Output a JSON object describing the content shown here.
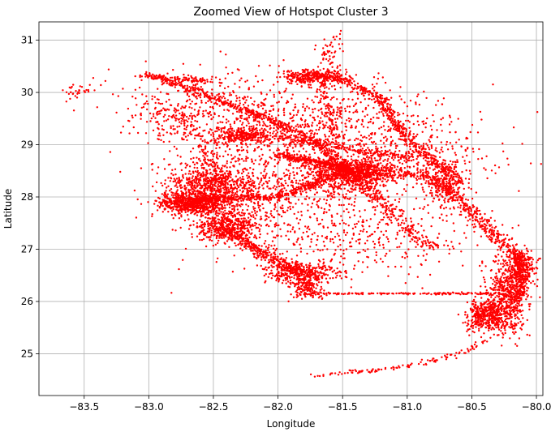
{
  "chart_data": {
    "type": "scatter",
    "title": "Zoomed View of Hotspot Cluster 3",
    "xlabel": "Longitude",
    "ylabel": "Latitude",
    "xlim": [
      -83.85,
      -79.95
    ],
    "ylim": [
      24.2,
      31.35
    ],
    "xticks": [
      -83.5,
      -83.0,
      -82.5,
      -82.0,
      -81.5,
      -81.0,
      -80.5,
      -80.0
    ],
    "xtick_labels": [
      "−83.5",
      "−83.0",
      "−82.5",
      "−82.0",
      "−81.5",
      "−81.0",
      "−80.5",
      "−80.0"
    ],
    "yticks": [
      25,
      26,
      27,
      28,
      29,
      30,
      31
    ],
    "ytick_labels": [
      "25",
      "26",
      "27",
      "28",
      "29",
      "30",
      "31"
    ],
    "grid": true,
    "series": [
      {
        "color": "#ff0000",
        "marker_size": 1.2,
        "clusters": [
          {
            "x": -82.66,
            "y": 27.88,
            "sx": 0.13,
            "sy": 0.1,
            "n": 700
          },
          {
            "x": -82.52,
            "y": 28.25,
            "sx": 0.15,
            "sy": 0.18,
            "n": 500
          },
          {
            "x": -82.4,
            "y": 27.45,
            "sx": 0.12,
            "sy": 0.15,
            "n": 450
          },
          {
            "x": -82.3,
            "y": 28.1,
            "sx": 0.2,
            "sy": 0.25,
            "n": 250
          },
          {
            "x": -81.4,
            "y": 28.5,
            "sx": 0.14,
            "sy": 0.12,
            "n": 650
          },
          {
            "x": -81.55,
            "y": 28.28,
            "sx": 0.2,
            "sy": 0.2,
            "n": 250
          },
          {
            "x": -81.72,
            "y": 30.3,
            "sx": 0.12,
            "sy": 0.07,
            "n": 320
          },
          {
            "x": -81.6,
            "y": 30.7,
            "sx": 0.07,
            "sy": 0.2,
            "n": 60
          },
          {
            "x": -82.28,
            "y": 29.18,
            "sx": 0.1,
            "sy": 0.08,
            "n": 260
          },
          {
            "x": -81.82,
            "y": 26.55,
            "sx": 0.14,
            "sy": 0.1,
            "n": 380
          },
          {
            "x": -81.78,
            "y": 26.25,
            "sx": 0.06,
            "sy": 0.1,
            "n": 140
          },
          {
            "x": -80.22,
            "y": 26.1,
            "sx": 0.08,
            "sy": 0.35,
            "n": 600
          },
          {
            "x": -80.38,
            "y": 25.75,
            "sx": 0.08,
            "sy": 0.15,
            "n": 450
          },
          {
            "x": -80.12,
            "y": 26.65,
            "sx": 0.05,
            "sy": 0.15,
            "n": 250
          },
          {
            "x": -80.7,
            "y": 28.25,
            "sx": 0.08,
            "sy": 0.2,
            "n": 180
          },
          {
            "x": -81.0,
            "y": 28.75,
            "sx": 0.4,
            "sy": 0.35,
            "n": 350
          },
          {
            "x": -82.0,
            "y": 28.7,
            "sx": 0.45,
            "sy": 0.55,
            "n": 700
          },
          {
            "x": -81.5,
            "y": 27.3,
            "sx": 0.55,
            "sy": 0.4,
            "n": 450
          },
          {
            "x": -82.6,
            "y": 29.7,
            "sx": 0.35,
            "sy": 0.35,
            "n": 320
          },
          {
            "x": -81.6,
            "y": 29.55,
            "sx": 0.4,
            "sy": 0.35,
            "n": 380
          },
          {
            "x": -83.55,
            "y": 30.02,
            "sx": 0.06,
            "sy": 0.06,
            "n": 30
          },
          {
            "x": -82.9,
            "y": 29.35,
            "sx": 0.1,
            "sy": 0.2,
            "n": 40
          }
        ],
        "paths": [
          {
            "pts": [
              [
                -82.95,
                30.3
              ],
              [
                -82.4,
                29.8
              ],
              [
                -81.8,
                29.2
              ],
              [
                -81.45,
                28.55
              ]
            ],
            "n": 500,
            "spread": 0.03
          },
          {
            "pts": [
              [
                -82.0,
                28.8
              ],
              [
                -81.45,
                28.55
              ]
            ],
            "n": 300,
            "spread": 0.03
          },
          {
            "pts": [
              [
                -82.7,
                27.95
              ],
              [
                -82.0,
                28.0
              ],
              [
                -81.45,
                28.5
              ]
            ],
            "n": 400,
            "spread": 0.03
          },
          {
            "pts": [
              [
                -81.4,
                28.45
              ],
              [
                -80.85,
                28.4
              ],
              [
                -80.7,
                28.2
              ],
              [
                -80.3,
                27.2
              ],
              [
                -80.1,
                26.85
              ]
            ],
            "n": 500,
            "spread": 0.04
          },
          {
            "pts": [
              [
                -81.6,
                30.35
              ],
              [
                -81.2,
                29.9
              ],
              [
                -81.05,
                29.25
              ],
              [
                -80.85,
                28.8
              ],
              [
                -80.6,
                28.3
              ]
            ],
            "n": 500,
            "spread": 0.03
          },
          {
            "pts": [
              [
                -81.45,
                28.5
              ],
              [
                -81.2,
                27.9
              ],
              [
                -81.0,
                27.4
              ],
              [
                -80.8,
                27.0
              ]
            ],
            "n": 250,
            "spread": 0.04
          },
          {
            "pts": [
              [
                -82.45,
                27.4
              ],
              [
                -82.1,
                26.9
              ],
              [
                -81.85,
                26.6
              ]
            ],
            "n": 350,
            "spread": 0.04
          },
          {
            "pts": [
              [
                -81.8,
                26.15
              ],
              [
                -81.3,
                26.15
              ],
              [
                -80.9,
                26.15
              ],
              [
                -80.35,
                26.15
              ]
            ],
            "n": 160,
            "spread": 0.01
          },
          {
            "pts": [
              [
                -81.75,
                24.57
              ],
              [
                -81.2,
                24.7
              ],
              [
                -80.9,
                24.8
              ],
              [
                -80.6,
                25.0
              ],
              [
                -80.4,
                25.25
              ]
            ],
            "n": 120,
            "spread": 0.02
          },
          {
            "pts": [
              [
                -82.2,
                29.2
              ],
              [
                -81.7,
                29.05
              ],
              [
                -81.3,
                28.85
              ],
              [
                -80.95,
                28.75
              ]
            ],
            "n": 200,
            "spread": 0.03
          },
          {
            "pts": [
              [
                -82.8,
                29.7
              ],
              [
                -82.6,
                29.1
              ],
              [
                -82.5,
                28.5
              ]
            ],
            "n": 120,
            "spread": 0.05
          },
          {
            "pts": [
              [
                -81.7,
                30.3
              ],
              [
                -81.6,
                29.8
              ],
              [
                -81.55,
                29.1
              ]
            ],
            "n": 100,
            "spread": 0.03
          },
          {
            "pts": [
              [
                -83.05,
                30.35
              ],
              [
                -82.95,
                30.3
              ],
              [
                -82.75,
                30.25
              ],
              [
                -82.55,
                30.2
              ]
            ],
            "n": 120,
            "spread": 0.03
          },
          {
            "pts": [
              [
                -80.2,
                26.95
              ],
              [
                -80.12,
                26.7
              ],
              [
                -80.1,
                26.4
              ],
              [
                -80.15,
                26.0
              ]
            ],
            "n": 150,
            "spread": 0.02
          }
        ]
      }
    ]
  }
}
